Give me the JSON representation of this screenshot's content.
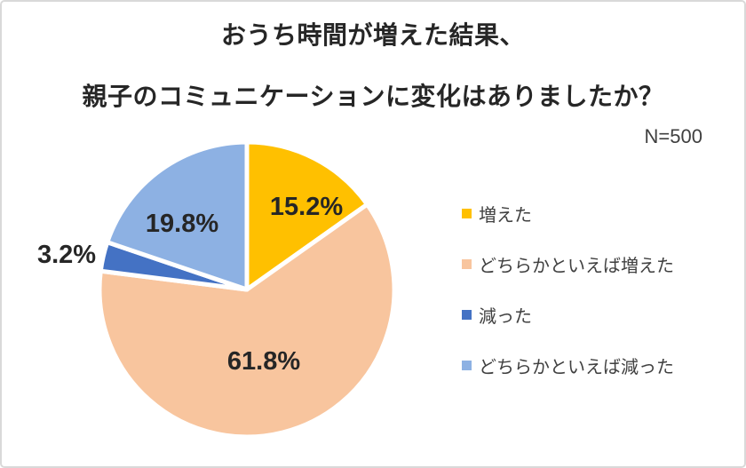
{
  "header": {
    "title_line1": "おうち時間が増えた結果、",
    "title_line2": "親子のコミュニケーションに変化はありましたか？",
    "sample_size": "N=500"
  },
  "chart_data": {
    "type": "pie",
    "title": "おうち時間が増えた結果、親子のコミュニケーションに変化はありましたか？",
    "sample_size_label": "N=500",
    "categories": [
      "増えた",
      "どちらかといえば増えた",
      "減った",
      "どちらかといえば減った"
    ],
    "values": [
      15.2,
      61.8,
      3.2,
      19.8
    ],
    "labels": [
      "15.2%",
      "61.8%",
      "3.2%",
      "19.8%"
    ],
    "unit": "%",
    "colors": [
      "#FFC000",
      "#F8C59E",
      "#4472C4",
      "#8DB1E3"
    ],
    "start_angle_deg": 0,
    "direction": "clockwise",
    "legend_position": "right",
    "slice_gap_color": "#FFFFFF",
    "label_color": "#262626",
    "legend_text_color": "#404040",
    "title_color": "#262626",
    "frame_border_color": "#D9D9D9",
    "background_color": "#FFFFFF"
  }
}
